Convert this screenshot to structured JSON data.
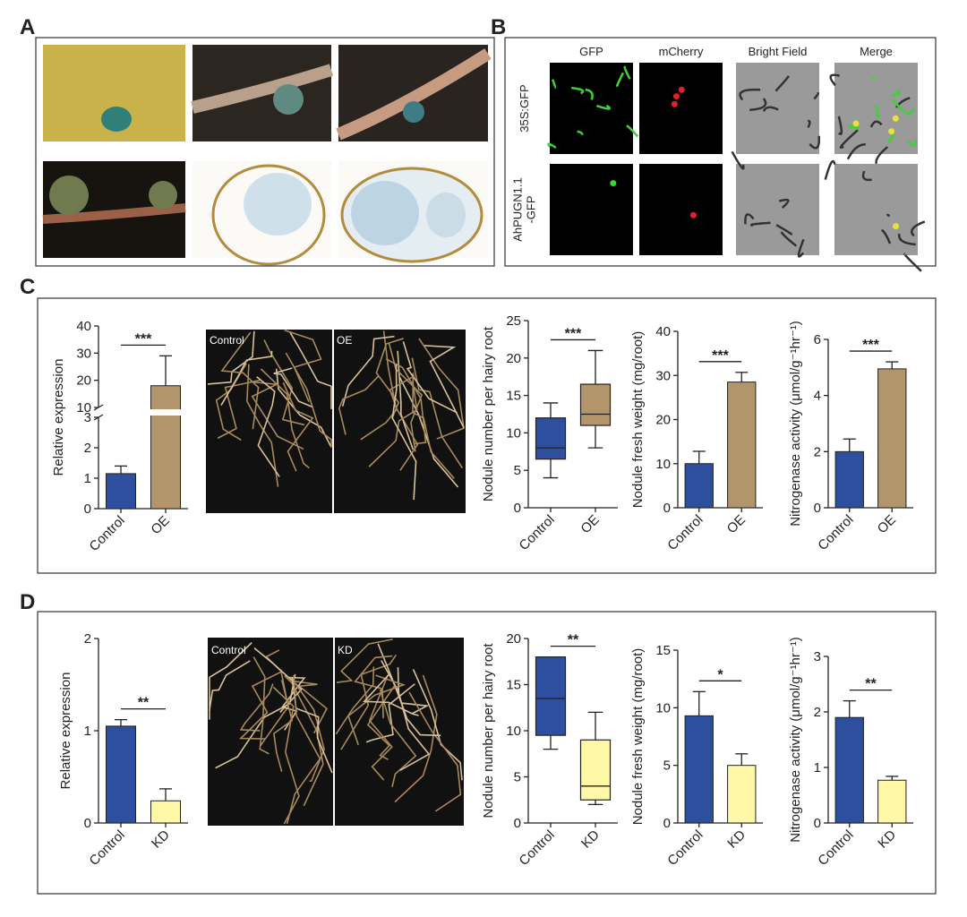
{
  "panel_labels": [
    "A",
    "B",
    "C",
    "D"
  ],
  "panel_b": {
    "columns": [
      "GFP",
      "mCherry",
      "Bright Field",
      "Merge"
    ],
    "row_labels": [
      [
        "35S:GFP"
      ],
      [
        "AhPUGN1.1",
        "-GFP"
      ]
    ]
  },
  "photo_labels_c": [
    "Control",
    "OE"
  ],
  "photo_labels_d": [
    "Control",
    "KD"
  ],
  "chart_data": [
    {
      "type": "bar",
      "ylabel": "Relative expression",
      "categories": [
        "Control",
        "OE"
      ],
      "values": [
        1.15,
        18
      ],
      "errors": [
        0.25,
        11
      ],
      "colors": [
        "#2d4f9e",
        "#b3956b"
      ],
      "ylim_lower": [
        0,
        3
      ],
      "ylim_upper": [
        10,
        40
      ],
      "yticks": [
        0,
        1,
        2,
        3,
        10,
        20,
        30,
        40
      ],
      "significance": "***"
    },
    {
      "type": "box",
      "ylabel": "Nodule number per hairy root",
      "categories": [
        "Control",
        "OE"
      ],
      "min": [
        4,
        8
      ],
      "q1": [
        6.5,
        11
      ],
      "median": [
        8,
        12.5
      ],
      "q3": [
        12,
        16.5
      ],
      "max": [
        14,
        21
      ],
      "colors": [
        "#2d4f9e",
        "#b3956b"
      ],
      "ylim": [
        0,
        25
      ],
      "yticks": [
        0,
        5,
        10,
        15,
        20,
        25
      ],
      "significance": "***"
    },
    {
      "type": "bar",
      "ylabel": "Nodule fresh weight (mg/root)",
      "categories": [
        "Control",
        "OE"
      ],
      "values": [
        10,
        28.5
      ],
      "errors": [
        2.8,
        2.2
      ],
      "colors": [
        "#2d4f9e",
        "#b3956b"
      ],
      "ylim": [
        0,
        40
      ],
      "yticks": [
        0,
        10,
        20,
        30,
        40
      ],
      "significance": "***"
    },
    {
      "type": "bar",
      "ylabel": "Nitrogenase activity (μmol/g⁻¹hr⁻¹)",
      "categories": [
        "Control",
        "OE"
      ],
      "values": [
        2.0,
        4.95
      ],
      "errors": [
        0.45,
        0.25
      ],
      "colors": [
        "#2d4f9e",
        "#b3956b"
      ],
      "ylim": [
        0,
        6
      ],
      "yticks": [
        0,
        2,
        4,
        6
      ],
      "significance": "***"
    },
    {
      "type": "bar",
      "ylabel": "Relative expression",
      "categories": [
        "Control",
        "KD"
      ],
      "values": [
        1.05,
        0.24
      ],
      "errors": [
        0.07,
        0.13
      ],
      "colors": [
        "#2d4f9e",
        "#fdf7a6"
      ],
      "ylim": [
        0,
        2
      ],
      "yticks": [
        0,
        1,
        2
      ],
      "significance": "**"
    },
    {
      "type": "box",
      "ylabel": "Nodule number per hairy root",
      "categories": [
        "Control",
        "KD"
      ],
      "min": [
        8,
        2
      ],
      "q1": [
        9.5,
        2.5
      ],
      "median": [
        13.5,
        4
      ],
      "q3": [
        18,
        9
      ],
      "max": [
        18,
        12
      ],
      "colors": [
        "#2d4f9e",
        "#fdf7a6"
      ],
      "ylim": [
        0,
        20
      ],
      "yticks": [
        0,
        5,
        10,
        15,
        20
      ],
      "significance": "**"
    },
    {
      "type": "bar",
      "ylabel": "Nodule fresh weight (mg/root)",
      "categories": [
        "Control",
        "KD"
      ],
      "values": [
        9.3,
        5.0
      ],
      "errors": [
        2.1,
        1.0
      ],
      "colors": [
        "#2d4f9e",
        "#fdf7a6"
      ],
      "ylim": [
        0,
        15
      ],
      "yticks": [
        0,
        5,
        10,
        15
      ],
      "significance": "*"
    },
    {
      "type": "bar",
      "ylabel": "Nitrogenase activity (μmol/g⁻¹hr⁻¹)",
      "categories": [
        "Control",
        "KD"
      ],
      "values": [
        1.9,
        0.77
      ],
      "errors": [
        0.3,
        0.07
      ],
      "colors": [
        "#2d4f9e",
        "#fdf7a6"
      ],
      "ylim": [
        0,
        3
      ],
      "yticks": [
        0,
        1,
        2,
        3
      ],
      "significance": "**"
    }
  ]
}
